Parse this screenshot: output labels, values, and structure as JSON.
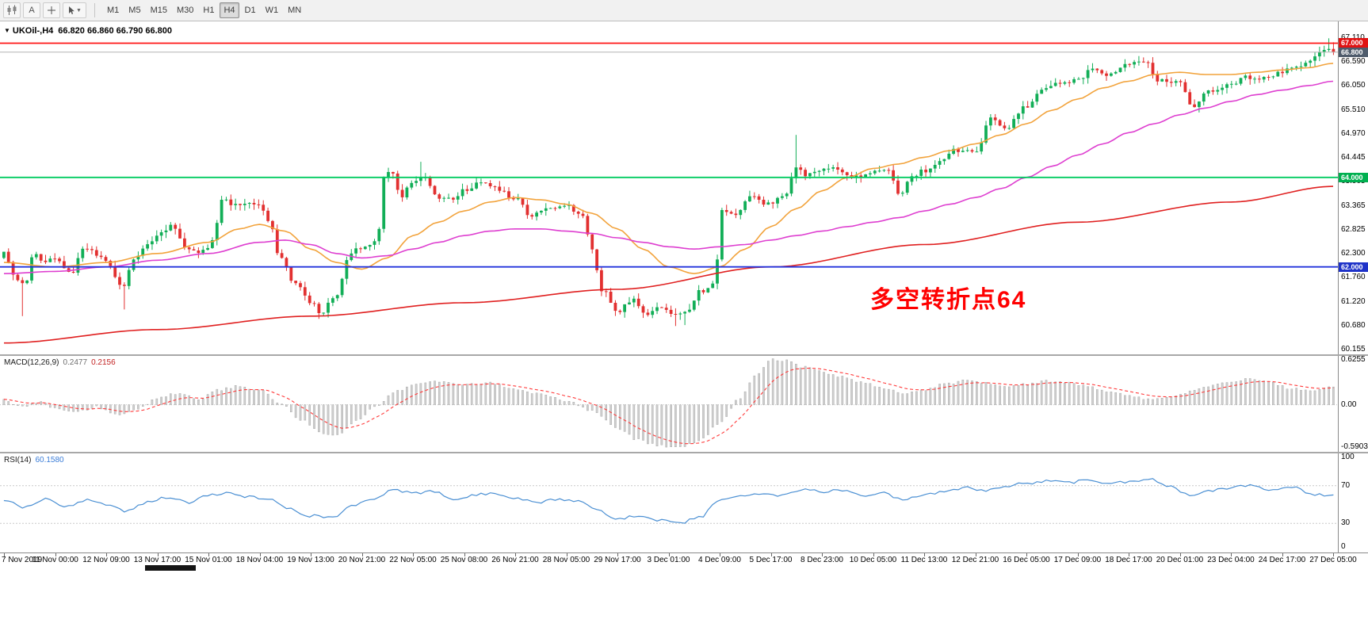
{
  "toolbar": {
    "text_tool_label": "A",
    "timeframes": [
      "M1",
      "M5",
      "M15",
      "M30",
      "H1",
      "H4",
      "D1",
      "W1",
      "MN"
    ],
    "active_timeframe": "H4",
    "icons": [
      "chart-type-icon",
      "text-label-button",
      "crosshair-icon",
      "cursor-tool-icon",
      "chevron-down-icon"
    ]
  },
  "chart": {
    "title": "UKOil-,H4",
    "ohlc": "66.820 66.860 66.790 66.800",
    "annotation": "多空转折点64",
    "axis_ticks": [
      "67.110",
      "66.590",
      "66.050",
      "65.510",
      "64.970",
      "64.445",
      "63.905",
      "63.365",
      "62.825",
      "62.300",
      "61.760",
      "61.220",
      "60.680",
      "60.155"
    ],
    "levels": [
      {
        "label": "67.000",
        "value": 67.0,
        "line_color": "#ff1414",
        "badge_color": "#e01212"
      },
      {
        "label": "66.800",
        "value": 66.8,
        "line_color": "#b4b4b4",
        "badge_color": "#4e5b6b"
      },
      {
        "label": "64.000",
        "value": 64.0,
        "line_color": "#00cb60",
        "badge_color": "#00b050"
      },
      {
        "label": "62.000",
        "value": 62.0,
        "line_color": "#2333dc",
        "badge_color": "#1e32c8"
      }
    ]
  },
  "macd": {
    "label": "MACD(12,26,9)",
    "value_main": "0.2477",
    "value_signal": "0.2156",
    "axis_labels": [
      "0.6255",
      "0.00",
      "-0.5903"
    ]
  },
  "rsi": {
    "label": "RSI(14)",
    "value": "60.1580",
    "axis_labels": [
      "100",
      "70",
      "30",
      "0"
    ]
  },
  "colors": {
    "candle_up": "#12ae57",
    "candle_down": "#e23030",
    "ma_red": "#e02020",
    "ma_orange": "#f2a33c",
    "ma_magenta": "#de3fd0",
    "macd_bar": "#cfcfcf",
    "macd_signal": "#ff3b3b",
    "rsi_line": "#4a8fd3",
    "annotation": "#ff0000"
  },
  "chart_data": {
    "type": "candlestick",
    "symbol": "UKOil-",
    "timeframe": "H4",
    "last_ohlc": {
      "open": 66.82,
      "high": 66.86,
      "low": 66.79,
      "close": 66.8
    },
    "price_axis_range": [
      60.1,
      67.15
    ],
    "horizontal_levels": [
      67.0,
      66.8,
      64.0,
      62.0
    ],
    "num_candles": 288,
    "keyframe_unit": "time_label_index (0 = first x label, 26 = last x label)",
    "x_labels": [
      "7 Nov 2019",
      "11 Nov 00:00",
      "12 Nov 09:00",
      "13 Nov 17:00",
      "15 Nov 01:00",
      "18 Nov 04:00",
      "19 Nov 13:00",
      "20 Nov 21:00",
      "22 Nov 05:00",
      "25 Nov 08:00",
      "26 Nov 21:00",
      "28 Nov 05:00",
      "29 Nov 17:00",
      "3 Dec 01:00",
      "4 Dec 09:00",
      "5 Dec 17:00",
      "8 Dec 23:00",
      "10 Dec 05:00",
      "11 Dec 13:00",
      "12 Dec 21:00",
      "16 Dec 05:00",
      "17 Dec 09:00",
      "18 Dec 17:00",
      "20 Dec 01:00",
      "23 Dec 04:00",
      "24 Dec 17:00",
      "27 Dec 05:00"
    ],
    "price_path_keyframes": [
      [
        0,
        62.3
      ],
      [
        0.25,
        61.75
      ],
      [
        0.4,
        61.6
      ],
      [
        0.6,
        62.35
      ],
      [
        0.8,
        62.1
      ],
      [
        1.0,
        62.2
      ],
      [
        1.3,
        61.85
      ],
      [
        1.6,
        62.45
      ],
      [
        1.8,
        62.3
      ],
      [
        2.0,
        62.15
      ],
      [
        2.3,
        61.55
      ],
      [
        2.6,
        62.25
      ],
      [
        2.8,
        62.5
      ],
      [
        3.0,
        62.7
      ],
      [
        3.3,
        62.9
      ],
      [
        3.6,
        62.4
      ],
      [
        3.9,
        62.35
      ],
      [
        4.1,
        62.6
      ],
      [
        4.25,
        63.55
      ],
      [
        4.5,
        63.4
      ],
      [
        4.75,
        63.45
      ],
      [
        5.0,
        63.35
      ],
      [
        5.2,
        63.05
      ],
      [
        5.4,
        62.2
      ],
      [
        5.7,
        61.6
      ],
      [
        6.0,
        61.2
      ],
      [
        6.2,
        60.95
      ],
      [
        6.5,
        61.4
      ],
      [
        6.8,
        62.35
      ],
      [
        7.0,
        62.4
      ],
      [
        7.3,
        62.55
      ],
      [
        7.45,
        64.05
      ],
      [
        7.6,
        64.1
      ],
      [
        7.75,
        63.55
      ],
      [
        8.0,
        63.9
      ],
      [
        8.2,
        64.0
      ],
      [
        8.5,
        63.55
      ],
      [
        8.8,
        63.5
      ],
      [
        9.0,
        63.7
      ],
      [
        9.3,
        63.9
      ],
      [
        9.6,
        63.75
      ],
      [
        10.0,
        63.55
      ],
      [
        10.3,
        63.15
      ],
      [
        10.6,
        63.3
      ],
      [
        11.0,
        63.35
      ],
      [
        11.3,
        63.2
      ],
      [
        11.5,
        62.4
      ],
      [
        11.7,
        61.5
      ],
      [
        12.0,
        61.0
      ],
      [
        12.3,
        61.25
      ],
      [
        12.6,
        60.95
      ],
      [
        12.85,
        61.1
      ],
      [
        13.1,
        60.9
      ],
      [
        13.35,
        61.0
      ],
      [
        13.6,
        61.45
      ],
      [
        13.9,
        61.6
      ],
      [
        14.05,
        63.3
      ],
      [
        14.3,
        63.15
      ],
      [
        14.6,
        63.55
      ],
      [
        15.0,
        63.4
      ],
      [
        15.3,
        63.65
      ],
      [
        15.5,
        64.2
      ],
      [
        15.7,
        64.05
      ],
      [
        16.0,
        64.15
      ],
      [
        16.3,
        64.2
      ],
      [
        16.6,
        64.0
      ],
      [
        17.0,
        64.1
      ],
      [
        17.3,
        64.2
      ],
      [
        17.5,
        63.6
      ],
      [
        17.8,
        64.05
      ],
      [
        18.0,
        64.15
      ],
      [
        18.3,
        64.35
      ],
      [
        18.6,
        64.6
      ],
      [
        19.0,
        64.55
      ],
      [
        19.3,
        65.3
      ],
      [
        19.6,
        65.1
      ],
      [
        20.0,
        65.6
      ],
      [
        20.3,
        65.95
      ],
      [
        20.6,
        66.1
      ],
      [
        21.0,
        66.2
      ],
      [
        21.3,
        66.4
      ],
      [
        21.6,
        66.3
      ],
      [
        22.0,
        66.5
      ],
      [
        22.3,
        66.6
      ],
      [
        22.6,
        66.15
      ],
      [
        23.0,
        66.1
      ],
      [
        23.25,
        65.6
      ],
      [
        23.6,
        65.95
      ],
      [
        24.0,
        66.1
      ],
      [
        24.3,
        66.25
      ],
      [
        24.6,
        66.2
      ],
      [
        25.0,
        66.35
      ],
      [
        25.3,
        66.5
      ],
      [
        25.6,
        66.65
      ],
      [
        25.9,
        66.9
      ],
      [
        26.0,
        66.8
      ]
    ],
    "wick_events": [
      [
        0.4,
        "low",
        60.9
      ],
      [
        2.35,
        "low",
        61.05
      ],
      [
        6.2,
        "low",
        60.92
      ],
      [
        8.2,
        "high",
        64.35
      ],
      [
        13.1,
        "low",
        60.68
      ],
      [
        13.35,
        "low",
        60.7
      ],
      [
        15.5,
        "high",
        64.95
      ],
      [
        25.9,
        "high",
        67.11
      ],
      [
        26,
        "high",
        67.02
      ]
    ],
    "ma_magenta_keyframes": [
      [
        0,
        61.85
      ],
      [
        1,
        61.9
      ],
      [
        2,
        62.0
      ],
      [
        3,
        62.15
      ],
      [
        4,
        62.3
      ],
      [
        5,
        62.55
      ],
      [
        5.5,
        62.6
      ],
      [
        6,
        62.5
      ],
      [
        6.5,
        62.3
      ],
      [
        7,
        62.2
      ],
      [
        7.5,
        62.25
      ],
      [
        8,
        62.4
      ],
      [
        8.5,
        62.55
      ],
      [
        9,
        62.7
      ],
      [
        9.5,
        62.8
      ],
      [
        10,
        62.85
      ],
      [
        10.5,
        62.85
      ],
      [
        11,
        62.8
      ],
      [
        11.5,
        62.75
      ],
      [
        12,
        62.65
      ],
      [
        12.5,
        62.55
      ],
      [
        13,
        62.45
      ],
      [
        13.5,
        62.4
      ],
      [
        14,
        62.45
      ],
      [
        14.5,
        62.5
      ],
      [
        15,
        62.6
      ],
      [
        15.5,
        62.7
      ],
      [
        16,
        62.8
      ],
      [
        16.5,
        62.9
      ],
      [
        17,
        63.0
      ],
      [
        17.5,
        63.1
      ],
      [
        18,
        63.25
      ],
      [
        18.5,
        63.4
      ],
      [
        19,
        63.55
      ],
      [
        19.5,
        63.75
      ],
      [
        20,
        64.0
      ],
      [
        20.5,
        64.25
      ],
      [
        21,
        64.5
      ],
      [
        21.5,
        64.75
      ],
      [
        22,
        65.0
      ],
      [
        22.5,
        65.2
      ],
      [
        23,
        65.4
      ],
      [
        23.5,
        65.55
      ],
      [
        24,
        65.7
      ],
      [
        24.5,
        65.85
      ],
      [
        25,
        65.95
      ],
      [
        25.5,
        66.05
      ],
      [
        26,
        66.15
      ]
    ],
    "ma_orange_keyframes": [
      [
        0,
        62.1
      ],
      [
        1,
        62.0
      ],
      [
        2,
        62.1
      ],
      [
        3,
        62.3
      ],
      [
        4,
        62.55
      ],
      [
        4.6,
        62.85
      ],
      [
        5,
        62.95
      ],
      [
        5.5,
        62.8
      ],
      [
        6,
        62.4
      ],
      [
        6.5,
        62.1
      ],
      [
        7,
        61.95
      ],
      [
        7.5,
        62.2
      ],
      [
        8,
        62.7
      ],
      [
        8.5,
        63.0
      ],
      [
        9,
        63.25
      ],
      [
        9.5,
        63.45
      ],
      [
        10,
        63.55
      ],
      [
        10.5,
        63.5
      ],
      [
        11,
        63.4
      ],
      [
        11.5,
        63.2
      ],
      [
        12,
        62.85
      ],
      [
        12.5,
        62.4
      ],
      [
        13,
        62.0
      ],
      [
        13.5,
        61.85
      ],
      [
        14,
        62.0
      ],
      [
        14.5,
        62.4
      ],
      [
        15,
        62.9
      ],
      [
        15.5,
        63.3
      ],
      [
        16,
        63.7
      ],
      [
        16.5,
        64.0
      ],
      [
        17,
        64.2
      ],
      [
        17.5,
        64.3
      ],
      [
        18,
        64.45
      ],
      [
        18.5,
        64.6
      ],
      [
        19,
        64.75
      ],
      [
        19.5,
        64.95
      ],
      [
        20,
        65.2
      ],
      [
        20.5,
        65.5
      ],
      [
        21,
        65.75
      ],
      [
        21.5,
        66.0
      ],
      [
        22,
        66.15
      ],
      [
        22.5,
        66.3
      ],
      [
        23,
        66.35
      ],
      [
        23.5,
        66.3
      ],
      [
        24,
        66.3
      ],
      [
        24.5,
        66.35
      ],
      [
        25,
        66.4
      ],
      [
        25.5,
        66.45
      ],
      [
        26,
        66.55
      ]
    ],
    "ma_red_keyframes": [
      [
        0,
        60.3
      ],
      [
        3,
        60.6
      ],
      [
        6,
        60.9
      ],
      [
        9,
        61.2
      ],
      [
        12,
        61.5
      ],
      [
        15,
        62.0
      ],
      [
        18,
        62.5
      ],
      [
        21,
        63.0
      ],
      [
        24,
        63.45
      ],
      [
        26,
        63.8
      ]
    ],
    "macd": {
      "range": [
        -0.5903,
        0.6255
      ],
      "current_main": 0.2477,
      "current_signal": 0.2156,
      "keyframes": [
        [
          0,
          0.06
        ],
        [
          0.3,
          -0.03
        ],
        [
          0.7,
          0.04
        ],
        [
          1,
          -0.05
        ],
        [
          1.4,
          -0.11
        ],
        [
          1.8,
          -0.03
        ],
        [
          2.2,
          -0.13
        ],
        [
          2.6,
          -0.06
        ],
        [
          3,
          0.08
        ],
        [
          3.4,
          0.16
        ],
        [
          3.8,
          0.08
        ],
        [
          4.2,
          0.2
        ],
        [
          4.6,
          0.26
        ],
        [
          5,
          0.2
        ],
        [
          5.4,
          0.02
        ],
        [
          5.8,
          -0.2
        ],
        [
          6.2,
          -0.38
        ],
        [
          6.5,
          -0.42
        ],
        [
          6.9,
          -0.22
        ],
        [
          7.3,
          0.0
        ],
        [
          7.7,
          0.2
        ],
        [
          8.1,
          0.3
        ],
        [
          8.5,
          0.32
        ],
        [
          9,
          0.28
        ],
        [
          9.5,
          0.3
        ],
        [
          10,
          0.22
        ],
        [
          10.5,
          0.14
        ],
        [
          11,
          0.06
        ],
        [
          11.5,
          -0.08
        ],
        [
          12,
          -0.32
        ],
        [
          12.4,
          -0.48
        ],
        [
          12.8,
          -0.56
        ],
        [
          13.2,
          -0.59
        ],
        [
          13.6,
          -0.5
        ],
        [
          14,
          -0.25
        ],
        [
          14.4,
          0.1
        ],
        [
          14.7,
          0.4
        ],
        [
          15,
          0.62
        ],
        [
          15.3,
          0.6
        ],
        [
          15.6,
          0.52
        ],
        [
          16,
          0.45
        ],
        [
          16.4,
          0.38
        ],
        [
          16.8,
          0.3
        ],
        [
          17.2,
          0.22
        ],
        [
          17.6,
          0.15
        ],
        [
          18,
          0.2
        ],
        [
          18.4,
          0.28
        ],
        [
          18.8,
          0.33
        ],
        [
          19.2,
          0.3
        ],
        [
          19.6,
          0.25
        ],
        [
          20,
          0.28
        ],
        [
          20.4,
          0.33
        ],
        [
          20.8,
          0.3
        ],
        [
          21.2,
          0.25
        ],
        [
          21.6,
          0.18
        ],
        [
          22,
          0.12
        ],
        [
          22.4,
          0.08
        ],
        [
          22.8,
          0.12
        ],
        [
          23.2,
          0.18
        ],
        [
          23.6,
          0.25
        ],
        [
          24,
          0.32
        ],
        [
          24.4,
          0.35
        ],
        [
          24.8,
          0.3
        ],
        [
          25.2,
          0.22
        ],
        [
          25.6,
          0.18
        ],
        [
          26,
          0.25
        ]
      ]
    },
    "rsi": {
      "range": [
        0,
        100
      ],
      "levels": [
        70,
        30
      ],
      "current": 60.158,
      "keyframes": [
        [
          0,
          55
        ],
        [
          0.4,
          47
        ],
        [
          0.8,
          56
        ],
        [
          1.2,
          48
        ],
        [
          1.6,
          55
        ],
        [
          2,
          50
        ],
        [
          2.4,
          43
        ],
        [
          2.8,
          52
        ],
        [
          3.2,
          58
        ],
        [
          3.6,
          52
        ],
        [
          4,
          60
        ],
        [
          4.4,
          63
        ],
        [
          4.8,
          58
        ],
        [
          5.2,
          55
        ],
        [
          5.6,
          45
        ],
        [
          6,
          38
        ],
        [
          6.4,
          36
        ],
        [
          6.8,
          48
        ],
        [
          7.2,
          55
        ],
        [
          7.6,
          65
        ],
        [
          8,
          62
        ],
        [
          8.4,
          64
        ],
        [
          8.8,
          56
        ],
        [
          9.2,
          60
        ],
        [
          9.6,
          62
        ],
        [
          10,
          57
        ],
        [
          10.4,
          52
        ],
        [
          10.8,
          55
        ],
        [
          11.2,
          54
        ],
        [
          11.6,
          45
        ],
        [
          12,
          35
        ],
        [
          12.4,
          38
        ],
        [
          12.8,
          33
        ],
        [
          13.2,
          30
        ],
        [
          13.6,
          36
        ],
        [
          14,
          55
        ],
        [
          14.4,
          58
        ],
        [
          14.8,
          62
        ],
        [
          15.2,
          60
        ],
        [
          15.6,
          66
        ],
        [
          16,
          64
        ],
        [
          16.4,
          65
        ],
        [
          16.8,
          60
        ],
        [
          17.2,
          62
        ],
        [
          17.6,
          55
        ],
        [
          18,
          60
        ],
        [
          18.4,
          64
        ],
        [
          18.8,
          68
        ],
        [
          19.2,
          65
        ],
        [
          19.6,
          70
        ],
        [
          20,
          72
        ],
        [
          20.4,
          75
        ],
        [
          20.8,
          73
        ],
        [
          21.2,
          76
        ],
        [
          21.6,
          72
        ],
        [
          22,
          74
        ],
        [
          22.4,
          78
        ],
        [
          22.8,
          70
        ],
        [
          23.2,
          60
        ],
        [
          23.6,
          65
        ],
        [
          24,
          68
        ],
        [
          24.4,
          70
        ],
        [
          24.8,
          66
        ],
        [
          25.2,
          69
        ],
        [
          25.6,
          60
        ],
        [
          26,
          60.16
        ]
      ]
    }
  }
}
